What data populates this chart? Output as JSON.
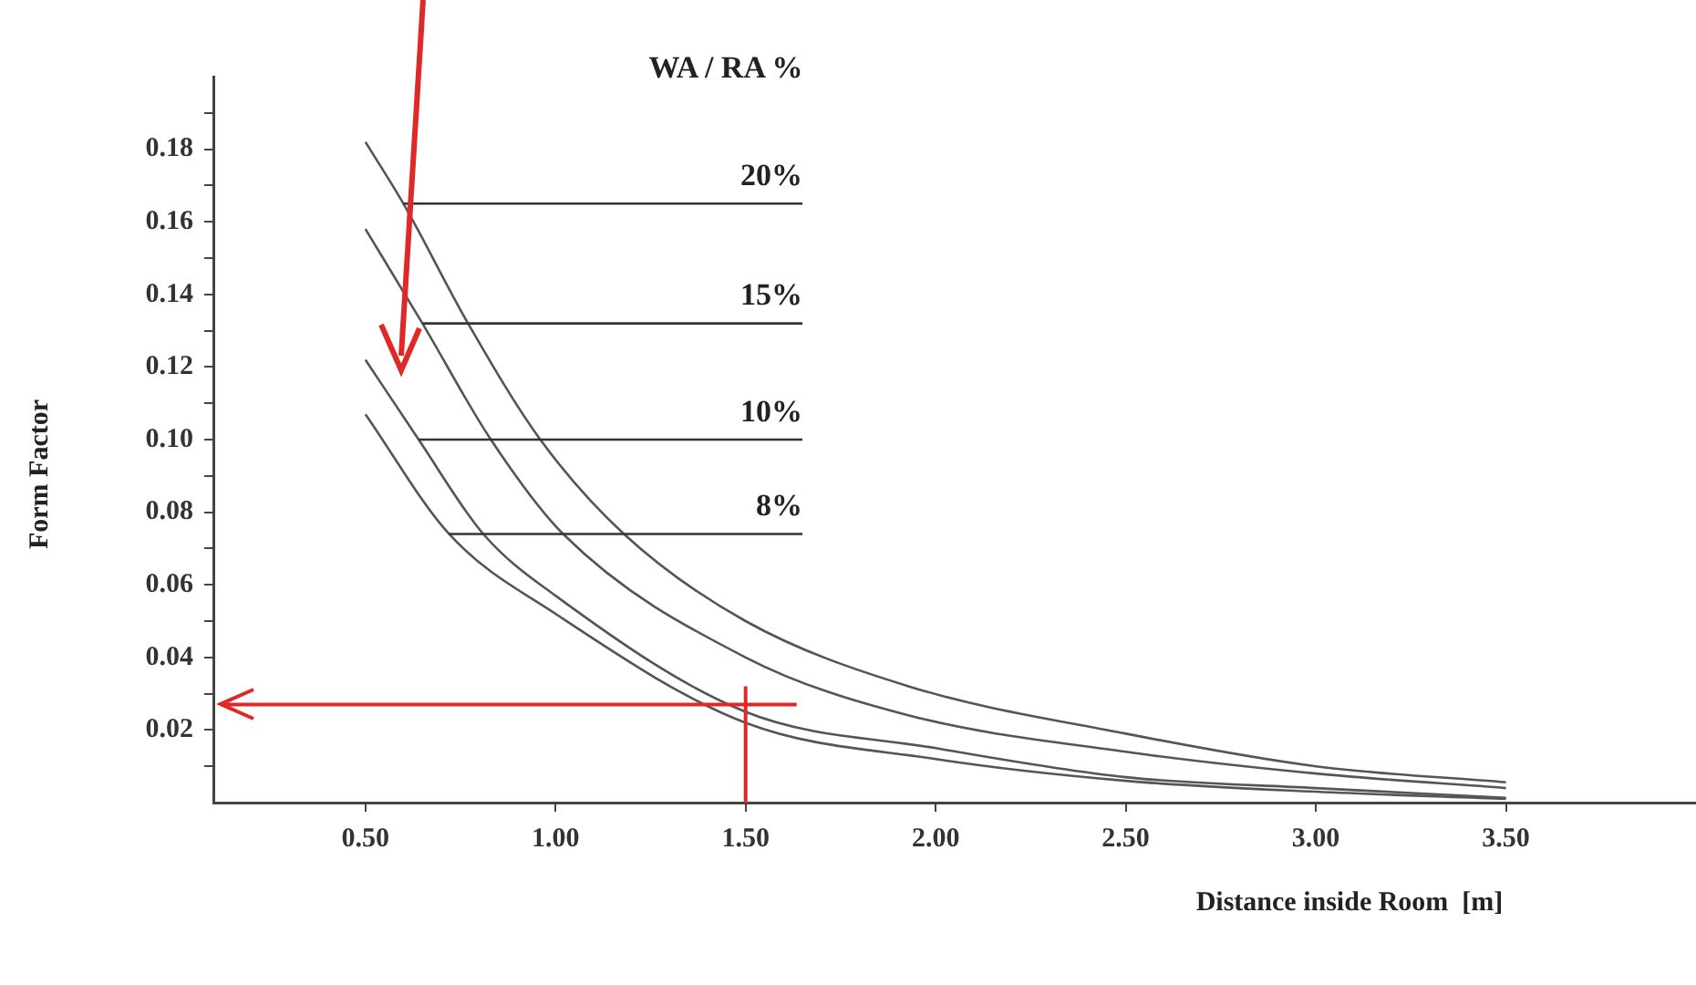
{
  "chart_data": {
    "type": "line",
    "legend_title": "WA / RA %",
    "xlabel": "Distance inside Room  [m]",
    "ylabel": "Form Factor",
    "xlim": [
      0.1,
      4.0
    ],
    "xticks": [
      {
        "value": 0.5,
        "label": "0.50"
      },
      {
        "value": 1,
        "label": "1.00"
      },
      {
        "value": 1.5,
        "label": "1.50"
      },
      {
        "value": 2,
        "label": "2.00"
      },
      {
        "value": 2.5,
        "label": "2.50"
      },
      {
        "value": 3,
        "label": "3.00"
      },
      {
        "value": 3.5,
        "label": "3.50"
      }
    ],
    "ylim": [
      0,
      0.2
    ],
    "yticks": [
      {
        "value": 0.01,
        "label": null
      },
      0.02,
      {
        "value": 0.03,
        "label": null
      },
      0.04,
      {
        "value": 0.05,
        "label": null
      },
      0.06,
      {
        "value": 0.07,
        "label": null
      },
      0.08,
      {
        "value": 0.09,
        "label": null
      },
      {
        "value": 0.1,
        "label": "0.10"
      },
      {
        "value": 0.11,
        "label": null
      },
      0.12,
      {
        "value": 0.13,
        "label": null
      },
      0.14,
      {
        "value": 0.15,
        "label": null
      },
      0.16,
      {
        "value": 0.17,
        "label": null
      },
      0.18,
      {
        "value": 0.19,
        "label": null
      }
    ],
    "grid": false,
    "legend": false,
    "marker": "none",
    "line_style": "solid",
    "series": [
      {
        "color": "#555555",
        "x": [
          0.5,
          0.6,
          0.77,
          0.96,
          1.18,
          1.5,
          1.93,
          2.5,
          3.0,
          3.5
        ],
        "values": [
          0.182,
          0.165,
          0.132,
          0.1,
          0.074,
          0.05,
          0.032,
          0.019,
          0.01,
          0.0056
        ]
      },
      {
        "color": "#555555",
        "x": [
          0.5,
          0.65,
          0.83,
          1.02,
          1.5,
          1.93,
          2.5,
          3.0,
          3.5
        ],
        "values": [
          0.158,
          0.132,
          0.1,
          0.074,
          0.04,
          0.024,
          0.014,
          0.008,
          0.004
        ]
      },
      {
        "color": "#555555",
        "x": [
          0.5,
          0.64,
          0.81,
          1.0,
          1.5,
          2.0,
          2.5,
          3.0,
          3.5
        ],
        "values": [
          0.122,
          0.1,
          0.074,
          0.057,
          0.025,
          0.015,
          0.007,
          0.004,
          0.0013
        ]
      },
      {
        "color": "#555555",
        "x": [
          0.5,
          0.72,
          1.0,
          1.5,
          2.0,
          2.5,
          3.0,
          3.5
        ],
        "values": [
          0.107,
          0.074,
          0.052,
          0.022,
          0.012,
          0.006,
          0.003,
          0.001
        ]
      }
    ],
    "annotations": [
      {
        "text": "20%",
        "x": 0.6,
        "y": 0.165
      },
      {
        "text": "15%",
        "x": 0.65,
        "y": 0.132
      },
      {
        "text": "10%",
        "x": 0.64,
        "y": 0.1
      },
      {
        "text": "8%",
        "x": 0.72,
        "y": 0.074
      }
    ],
    "ref_lines": [
      {
        "axis": "x",
        "value": 1.5,
        "color": "#e02828"
      },
      {
        "axis": "y",
        "value": 0.027,
        "color": "#e02828"
      }
    ]
  }
}
